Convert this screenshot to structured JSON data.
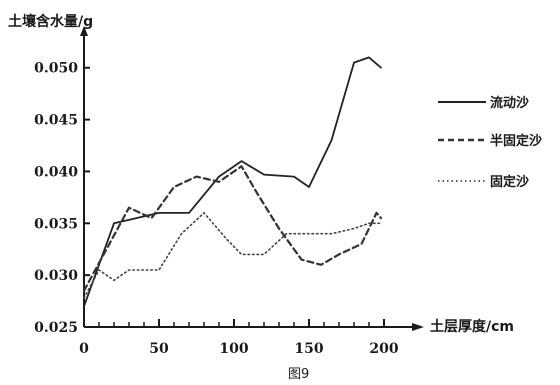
{
  "chart_data": {
    "type": "line",
    "ylabel": "土壤含水量/g",
    "xlabel": "土层厚度/cm",
    "caption": "图9",
    "xlim": [
      0,
      200
    ],
    "ylim": [
      0.025,
      0.052
    ],
    "xticks": [
      0,
      50,
      100,
      150,
      200
    ],
    "yticks": [
      0.025,
      0.03,
      0.035,
      0.04,
      0.045,
      0.05
    ],
    "ytick_labels": [
      "0.025",
      "0.030",
      "0.035",
      "0.040",
      "0.045",
      "0.050"
    ],
    "grid": false,
    "legend_position": "right",
    "series": [
      {
        "name": "流动沙",
        "style": "solid",
        "x": [
          0,
          20,
          50,
          70,
          90,
          105,
          120,
          140,
          150,
          165,
          180,
          190,
          198
        ],
        "y": [
          0.027,
          0.035,
          0.036,
          0.036,
          0.0395,
          0.041,
          0.0397,
          0.0395,
          0.0385,
          0.043,
          0.0505,
          0.051,
          0.05
        ]
      },
      {
        "name": "半固定沙",
        "style": "dashed",
        "x": [
          0,
          15,
          30,
          45,
          60,
          75,
          90,
          105,
          115,
          130,
          145,
          158,
          170,
          185,
          195,
          198
        ],
        "y": [
          0.0285,
          0.0325,
          0.0365,
          0.0355,
          0.0385,
          0.0395,
          0.039,
          0.0405,
          0.038,
          0.0345,
          0.0315,
          0.031,
          0.032,
          0.033,
          0.036,
          0.0355
        ]
      },
      {
        "name": "固定沙",
        "style": "dotted",
        "x": [
          0,
          10,
          20,
          30,
          50,
          65,
          80,
          95,
          105,
          120,
          135,
          150,
          165,
          180,
          190,
          198
        ],
        "y": [
          0.0278,
          0.0305,
          0.0295,
          0.0305,
          0.0305,
          0.034,
          0.036,
          0.0335,
          0.032,
          0.032,
          0.034,
          0.034,
          0.034,
          0.0345,
          0.035,
          0.035
        ]
      }
    ]
  }
}
